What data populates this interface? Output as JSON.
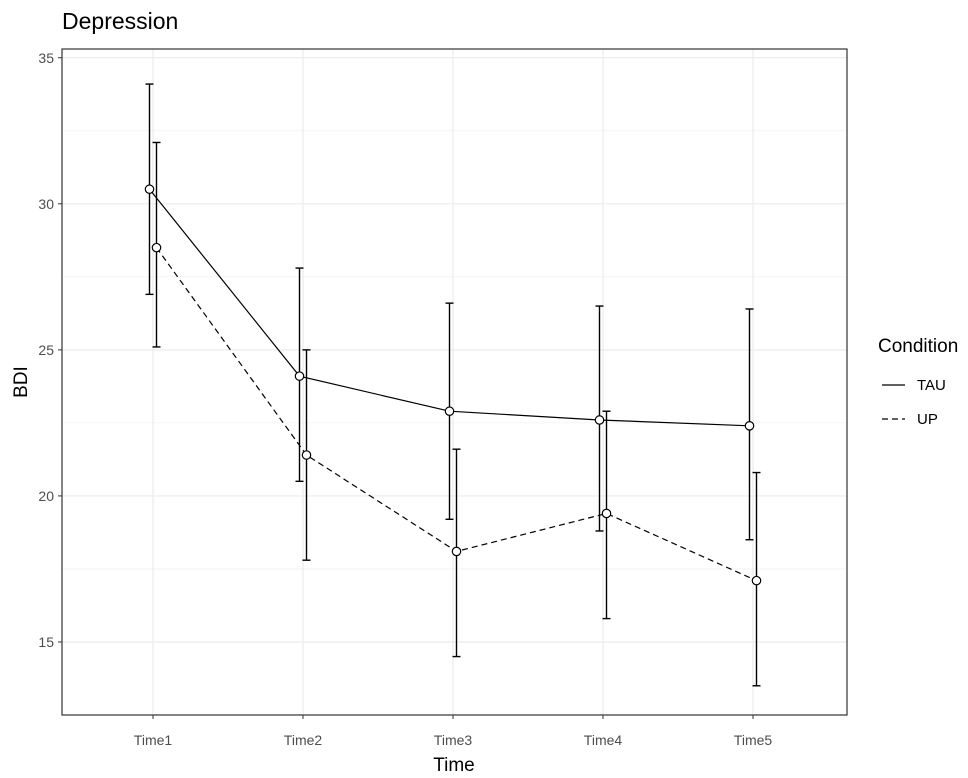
{
  "chart_data": {
    "type": "line",
    "title": "Depression",
    "xlabel": "Time",
    "ylabel": "BDI",
    "categories": [
      "Time1",
      "Time2",
      "Time3",
      "Time4",
      "Time5"
    ],
    "ylim": [
      12.5,
      35.3
    ],
    "yticks": [
      15,
      20,
      25,
      30,
      35
    ],
    "grid": true,
    "legend": {
      "title": "Condition",
      "position": "right"
    },
    "series": [
      {
        "name": "TAU",
        "linestyle": "solid",
        "values": [
          30.5,
          24.1,
          22.9,
          22.6,
          22.4
        ],
        "lower": [
          26.9,
          20.5,
          19.2,
          18.8,
          18.5
        ],
        "upper": [
          34.1,
          27.8,
          26.6,
          26.5,
          26.4
        ]
      },
      {
        "name": "UP",
        "linestyle": "dashed",
        "values": [
          28.5,
          21.4,
          18.1,
          19.4,
          17.1
        ],
        "lower": [
          25.1,
          17.8,
          14.5,
          15.8,
          13.5
        ],
        "upper": [
          32.1,
          25.0,
          21.6,
          22.9,
          20.8
        ]
      }
    ]
  }
}
